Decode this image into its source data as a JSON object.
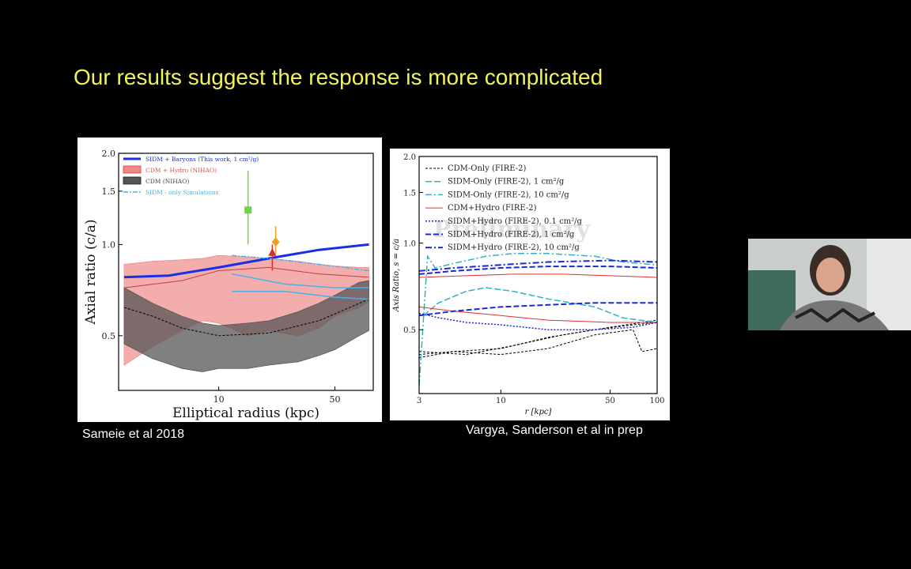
{
  "slide": {
    "title": "Our results suggest the response is more complicated"
  },
  "captions": {
    "left": "Sameie et al 2018",
    "right": "Vargya, Sanderson et al in prep"
  },
  "colors": {
    "background": "#000000",
    "title": "#f2f25a",
    "caption": "#ffffff"
  },
  "webcam": {
    "icon": "presenter-video-icon"
  },
  "chart_data": [
    {
      "type": "line",
      "xlabel": "Elliptical radius (kpc)",
      "ylabel": "Axial ratio (c/a)",
      "xscale": "log",
      "yscale": "log",
      "xlim": [
        2.5,
        85
      ],
      "ylim": [
        0.33,
        2.0
      ],
      "xticks": [
        {
          "v": 10,
          "label": "10"
        },
        {
          "v": 50,
          "label": "50"
        }
      ],
      "yticks": [
        {
          "v": 0.5,
          "label": "0.5"
        },
        {
          "v": 1.0,
          "label": "1.0"
        },
        {
          "v": 1.5,
          "label": "1.5"
        },
        {
          "v": 2.0,
          "label": "2.0"
        }
      ],
      "legend_position": "top-left",
      "legend": [
        {
          "label": "SIDM + Baryons (This work, 1 cm²/g)",
          "color": "#1a2ee6",
          "style": "thick-line"
        },
        {
          "label": "CDM + Hydro (NIHAO)",
          "color": "#e05050",
          "style": "patch-red"
        },
        {
          "label": "CDM (NIHAO)",
          "color": "#444444",
          "style": "patch-gray"
        },
        {
          "label": "SIDM - only Simulations",
          "color": "#4ab0e8",
          "style": "dashdot"
        }
      ],
      "bands": [
        {
          "name": "CDM + Hydro (NIHAO)",
          "color": "#f08a8a",
          "opacity": 0.7,
          "x": [
            2.7,
            4,
            6,
            8,
            10,
            15,
            20,
            30,
            40,
            50,
            70,
            80
          ],
          "upper": [
            0.86,
            0.88,
            0.89,
            0.9,
            0.92,
            0.91,
            0.9,
            0.88,
            0.86,
            0.85,
            0.84,
            0.84
          ],
          "lower": [
            0.4,
            0.46,
            0.52,
            0.56,
            0.55,
            0.5,
            0.52,
            0.5,
            0.53,
            0.58,
            0.62,
            0.65
          ]
        },
        {
          "name": "CDM (NIHAO)",
          "color": "#555555",
          "opacity": 0.75,
          "x": [
            2.7,
            4,
            6,
            8,
            10,
            15,
            20,
            30,
            40,
            50,
            70,
            80
          ],
          "upper": [
            0.72,
            0.64,
            0.58,
            0.55,
            0.54,
            0.55,
            0.56,
            0.6,
            0.64,
            0.68,
            0.75,
            0.76
          ],
          "lower": [
            0.47,
            0.42,
            0.39,
            0.38,
            0.39,
            0.39,
            0.4,
            0.41,
            0.43,
            0.45,
            0.5,
            0.52
          ]
        }
      ],
      "series": [
        {
          "color": "#1a2ee6",
          "width": 3,
          "dash": "",
          "x": [
            2.7,
            5,
            10,
            20,
            40,
            80
          ],
          "y": [
            0.78,
            0.79,
            0.84,
            0.9,
            0.96,
            1.0
          ]
        },
        {
          "color": "#000000",
          "width": 1,
          "dash": "3,2",
          "x": [
            2.7,
            4,
            6,
            10,
            20,
            40,
            80
          ],
          "y": [
            0.62,
            0.58,
            0.53,
            0.5,
            0.51,
            0.56,
            0.66
          ]
        },
        {
          "color": "#c04040",
          "width": 1,
          "dash": "",
          "x": [
            2.7,
            6,
            10,
            20,
            40,
            80
          ],
          "y": [
            0.72,
            0.76,
            0.82,
            0.84,
            0.8,
            0.78
          ]
        },
        {
          "color": "#4ab0e8",
          "width": 1.5,
          "dash": "6,2,2,2",
          "x": [
            12,
            20,
            40,
            80
          ],
          "y": [
            0.92,
            0.9,
            0.86,
            0.82
          ]
        },
        {
          "color": "#4ab0e8",
          "width": 1.5,
          "dash": "",
          "x": [
            12,
            25,
            50,
            80
          ],
          "y": [
            0.8,
            0.74,
            0.72,
            0.72
          ]
        },
        {
          "color": "#4ab0e8",
          "width": 1.5,
          "dash": "",
          "x": [
            12,
            25,
            50,
            80
          ],
          "y": [
            0.7,
            0.7,
            0.67,
            0.66
          ]
        }
      ],
      "points": [
        {
          "marker": "square",
          "color": "#6ad64a",
          "x": 15,
          "y": 1.3,
          "err": [
            1.0,
            1.75
          ]
        },
        {
          "marker": "diamond",
          "color": "#f0a020",
          "x": 22,
          "y": 1.02,
          "err": [
            0.93,
            1.15
          ]
        },
        {
          "marker": "triangle",
          "color": "#d03030",
          "x": 21,
          "y": 0.94,
          "err": [
            0.82,
            1.0
          ]
        }
      ]
    },
    {
      "type": "line",
      "xlabel": "r [kpc]",
      "ylabel": "Axis Ratio, s = c/a",
      "xscale": "log",
      "yscale": "log",
      "xlim": [
        3,
        100
      ],
      "ylim": [
        0.3,
        2.0
      ],
      "xticks": [
        {
          "v": 3,
          "label": "3"
        },
        {
          "v": 10,
          "label": "10"
        },
        {
          "v": 50,
          "label": "50"
        },
        {
          "v": 100,
          "label": "100"
        }
      ],
      "yticks": [
        {
          "v": 0.5,
          "label": "0.5"
        },
        {
          "v": 1.0,
          "label": "1.0"
        },
        {
          "v": 1.5,
          "label": "1.5"
        },
        {
          "v": 2.0,
          "label": "2.0"
        }
      ],
      "legend_position": "top-left",
      "legend": [
        {
          "label": "CDM-Only (FIRE-2)",
          "color": "#000000",
          "dash": "3,2",
          "width": 1
        },
        {
          "label": "SIDM-Only (FIRE-2), 1 cm²/g",
          "color": "#2fb4c4",
          "dash": "8,3",
          "width": 1.5
        },
        {
          "label": "SIDM-Only (FIRE-2), 10 cm²/g",
          "color": "#2fb4c4",
          "dash": "8,3,2,3",
          "width": 1.5
        },
        {
          "label": "CDM+Hydro (FIRE-2)",
          "color": "#e03030",
          "dash": "",
          "width": 1
        },
        {
          "label": "SIDM+Hydro (FIRE-2), 0.1 cm²/g",
          "color": "#1a28d8",
          "dash": "2,2",
          "width": 1.5
        },
        {
          "label": "SIDM+Hydro (FIRE-2), 1 cm²/g",
          "color": "#1a28d8",
          "dash": "7,3",
          "width": 2
        },
        {
          "label": "SIDM+Hydro (FIRE-2), 10 cm²/g",
          "color": "#1a28d8",
          "dash": "8,3,2,3",
          "width": 2
        }
      ],
      "series": [
        {
          "color": "#000000",
          "width": 1,
          "dash": "3,2",
          "x": [
            3,
            5,
            10,
            20,
            40,
            70,
            100
          ],
          "y": [
            0.41,
            0.42,
            0.43,
            0.47,
            0.5,
            0.52,
            0.53
          ]
        },
        {
          "color": "#000000",
          "width": 1,
          "dash": "3,2",
          "x": [
            3,
            6,
            12,
            25,
            50,
            100
          ],
          "y": [
            0.42,
            0.41,
            0.44,
            0.48,
            0.51,
            0.54
          ]
        },
        {
          "color": "#000000",
          "width": 1,
          "dash": "3,2",
          "x": [
            3,
            5,
            10,
            20,
            40,
            70,
            80,
            100
          ],
          "y": [
            0.4,
            0.42,
            0.41,
            0.43,
            0.48,
            0.5,
            0.42,
            0.43
          ]
        },
        {
          "color": "#2fb4c4",
          "width": 1.5,
          "dash": "8,3",
          "x": [
            3.2,
            4,
            6,
            8,
            12,
            20,
            40,
            60,
            100
          ],
          "y": [
            0.56,
            0.62,
            0.68,
            0.7,
            0.68,
            0.64,
            0.6,
            0.55,
            0.53
          ]
        },
        {
          "color": "#2fb4c4",
          "width": 1.5,
          "dash": "8,3,2,3",
          "x": [
            3,
            3.4,
            3.8,
            5,
            8,
            12,
            20,
            40,
            60,
            100
          ],
          "y": [
            0.32,
            0.9,
            0.82,
            0.85,
            0.9,
            0.92,
            0.92,
            0.9,
            0.86,
            0.84
          ]
        },
        {
          "color": "#e03030",
          "width": 1,
          "dash": "",
          "x": [
            3,
            5,
            10,
            20,
            50,
            100
          ],
          "y": [
            0.6,
            0.58,
            0.56,
            0.54,
            0.53,
            0.53
          ]
        },
        {
          "color": "#e03030",
          "width": 1,
          "dash": "",
          "x": [
            3,
            6,
            12,
            25,
            50,
            100
          ],
          "y": [
            0.76,
            0.77,
            0.78,
            0.78,
            0.77,
            0.76
          ]
        },
        {
          "color": "#1a28d8",
          "width": 1.5,
          "dash": "2,2",
          "x": [
            3,
            4,
            6,
            10,
            20,
            40,
            70,
            100
          ],
          "y": [
            0.57,
            0.55,
            0.53,
            0.52,
            0.5,
            0.5,
            0.51,
            0.53
          ]
        },
        {
          "color": "#1a28d8",
          "width": 2,
          "dash": "7,3",
          "x": [
            3,
            5,
            10,
            20,
            40,
            100
          ],
          "y": [
            0.56,
            0.58,
            0.6,
            0.61,
            0.62,
            0.62
          ]
        },
        {
          "color": "#1a28d8",
          "width": 2,
          "dash": "7,3",
          "x": [
            3,
            5,
            10,
            20,
            50,
            100
          ],
          "y": [
            0.78,
            0.8,
            0.82,
            0.83,
            0.83,
            0.82
          ]
        },
        {
          "color": "#1a28d8",
          "width": 2,
          "dash": "8,3,2,3",
          "x": [
            3,
            5,
            10,
            20,
            50,
            100
          ],
          "y": [
            0.8,
            0.82,
            0.84,
            0.86,
            0.87,
            0.86
          ]
        }
      ],
      "watermark": "Preliminary"
    }
  ]
}
